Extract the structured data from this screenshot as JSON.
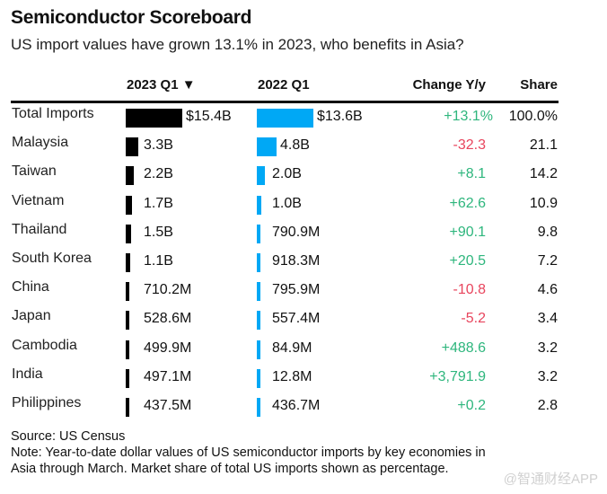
{
  "title": "Semiconductor Scoreboard",
  "subtitle": "US import values have grown 13.1% in 2023, who benefits in Asia?",
  "columns": {
    "q2023": "2023 Q1",
    "sort_indicator": "▼",
    "q2022": "2022 Q1",
    "change": "Change Y/y",
    "share": "Share"
  },
  "colors": {
    "bar_2023": "#000000",
    "bar_2022": "#00a8f5",
    "positive": "#2eb67d",
    "negative": "#e8455d"
  },
  "footer": {
    "source": "Source: US Census",
    "note_line1": "Note: Year-to-date dollar values of US semiconductor imports by key economies in",
    "note_line2": "Asia through March. Market share of total US imports shown as percentage."
  },
  "watermark": "@智通财经APP",
  "chart_data": {
    "type": "table",
    "title": "Semiconductor Scoreboard",
    "subtitle": "US import values have grown 13.1% in 2023, who benefits in Asia?",
    "columns": [
      "2023 Q1",
      "2022 Q1",
      "Change Y/y",
      "Share"
    ],
    "sorted_by": "2023 Q1 descending",
    "rows": [
      {
        "name": "Total Imports",
        "v2023": 15.4,
        "v2022": 13.6,
        "label2023": "$15.4B",
        "label2022": "$13.6B",
        "change": "+13.1%",
        "change_value": 13.1,
        "share": "100.0%"
      },
      {
        "name": "Malaysia",
        "v2023": 3.3,
        "v2022": 4.8,
        "label2023": "3.3B",
        "label2022": "4.8B",
        "change": "-32.3",
        "change_value": -32.3,
        "share": "21.1"
      },
      {
        "name": "Taiwan",
        "v2023": 2.2,
        "v2022": 2.0,
        "label2023": "2.2B",
        "label2022": "2.0B",
        "change": "+8.1",
        "change_value": 8.1,
        "share": "14.2"
      },
      {
        "name": "Vietnam",
        "v2023": 1.7,
        "v2022": 1.0,
        "label2023": "1.7B",
        "label2022": "1.0B",
        "change": "+62.6",
        "change_value": 62.6,
        "share": "10.9"
      },
      {
        "name": "Thailand",
        "v2023": 1.5,
        "v2022": 0.7909,
        "label2023": "1.5B",
        "label2022": "790.9M",
        "change": "+90.1",
        "change_value": 90.1,
        "share": "9.8"
      },
      {
        "name": "South Korea",
        "v2023": 1.1,
        "v2022": 0.9183,
        "label2023": "1.1B",
        "label2022": "918.3M",
        "change": "+20.5",
        "change_value": 20.5,
        "share": "7.2"
      },
      {
        "name": "China",
        "v2023": 0.7102,
        "v2022": 0.7959,
        "label2023": "710.2M",
        "label2022": "795.9M",
        "change": "-10.8",
        "change_value": -10.8,
        "share": "4.6"
      },
      {
        "name": "Japan",
        "v2023": 0.5286,
        "v2022": 0.5574,
        "label2023": "528.6M",
        "label2022": "557.4M",
        "change": "-5.2",
        "change_value": -5.2,
        "share": "3.4"
      },
      {
        "name": "Cambodia",
        "v2023": 0.4999,
        "v2022": 0.0849,
        "label2023": "499.9M",
        "label2022": "84.9M",
        "change": "+488.6",
        "change_value": 488.6,
        "share": "3.2"
      },
      {
        "name": "India",
        "v2023": 0.4971,
        "v2022": 0.0128,
        "label2023": "497.1M",
        "label2022": "12.8M",
        "change": "+3,791.9",
        "change_value": 3791.9,
        "share": "3.2"
      },
      {
        "name": "Philippines",
        "v2023": 0.4375,
        "v2022": 0.4367,
        "label2023": "437.5M",
        "label2022": "436.7M",
        "change": "+0.2",
        "change_value": 0.2,
        "share": "2.8"
      }
    ],
    "units": "USD billions"
  }
}
